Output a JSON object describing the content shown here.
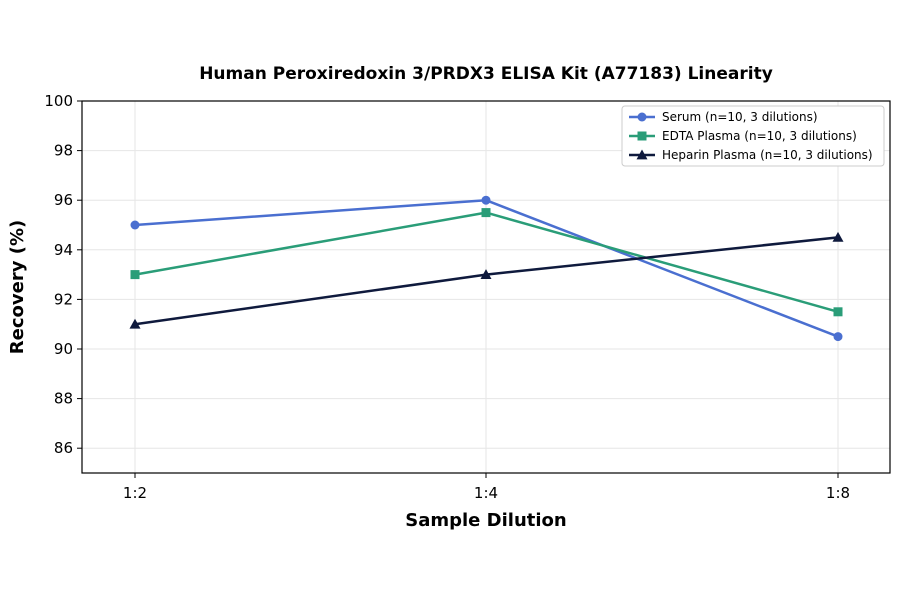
{
  "chart_data": {
    "type": "line",
    "title": "Human Peroxiredoxin 3/PRDX3 ELISA Kit (A77183) Linearity",
    "xlabel": "Sample Dilution",
    "ylabel": "Recovery (%)",
    "categories": [
      "1:2",
      "1:4",
      "1:8"
    ],
    "ylim": [
      85,
      100
    ],
    "yticks": [
      86,
      88,
      90,
      92,
      94,
      96,
      98,
      100
    ],
    "grid": true,
    "legend_position": "top-right",
    "series": [
      {
        "name": "Serum (n=10, 3 dilutions)",
        "values": [
          95,
          96,
          90.5
        ],
        "color": "#4a6fd0",
        "marker": "circle"
      },
      {
        "name": "EDTA Plasma (n=10, 3 dilutions)",
        "values": [
          93,
          95.5,
          91.5
        ],
        "color": "#2a9d78",
        "marker": "square"
      },
      {
        "name": "Heparin Plasma (n=10, 3 dilutions)",
        "values": [
          91,
          93,
          94.5
        ],
        "color": "#0f1a3d",
        "marker": "triangle"
      }
    ]
  }
}
